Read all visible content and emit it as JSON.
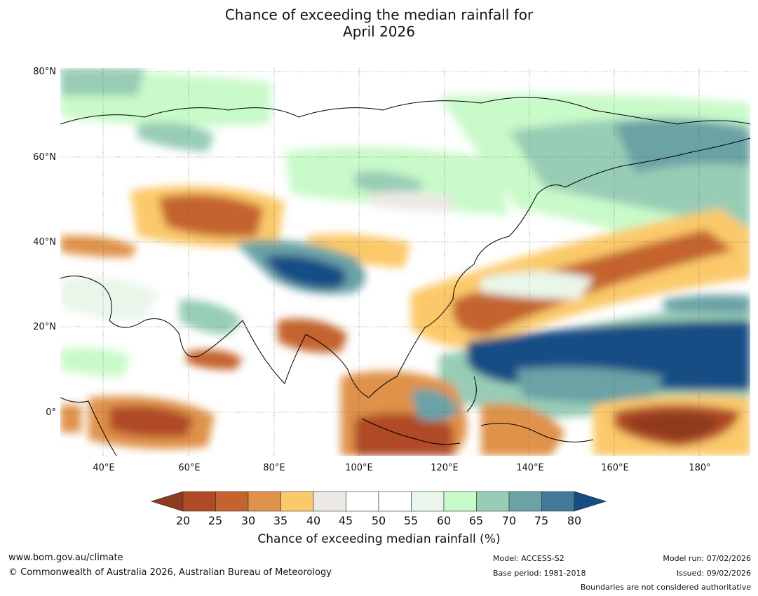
{
  "title_line1": "Chance of exceeding the median rainfall for",
  "title_line2": "April 2026",
  "lat_labels": [
    "80°N",
    "60°N",
    "40°N",
    "20°N",
    "0°"
  ],
  "lon_labels": [
    "40°E",
    "60°E",
    "80°E",
    "100°E",
    "120°E",
    "140°E",
    "160°E",
    "180°"
  ],
  "colorbar": {
    "title": "Chance of exceeding median rainfall (%)",
    "ticks": [
      "20",
      "25",
      "30",
      "35",
      "40",
      "45",
      "50",
      "55",
      "60",
      "65",
      "70",
      "75",
      "80"
    ],
    "colors": [
      "#8e3a1f",
      "#b04a26",
      "#c4632f",
      "#df924a",
      "#fbc96a",
      "#ece9e4",
      "#ffffff",
      "#ffffff",
      "#eaf6ea",
      "#c9fac9",
      "#98cdb5",
      "#6ba2a6",
      "#427898",
      "#164d85"
    ]
  },
  "footer": {
    "url": "www.bom.gov.au/climate",
    "copyright": "© Commonwealth of Australia 2026, Australian Bureau of Meteorology",
    "model": "Model: ACCESS-S2",
    "base_period": "Base period: 1981-2018",
    "model_run": "Model run: 07/02/2026",
    "issued": "Issued: 09/02/2026",
    "disclaimer": "Boundaries are not considered authoritative"
  }
}
